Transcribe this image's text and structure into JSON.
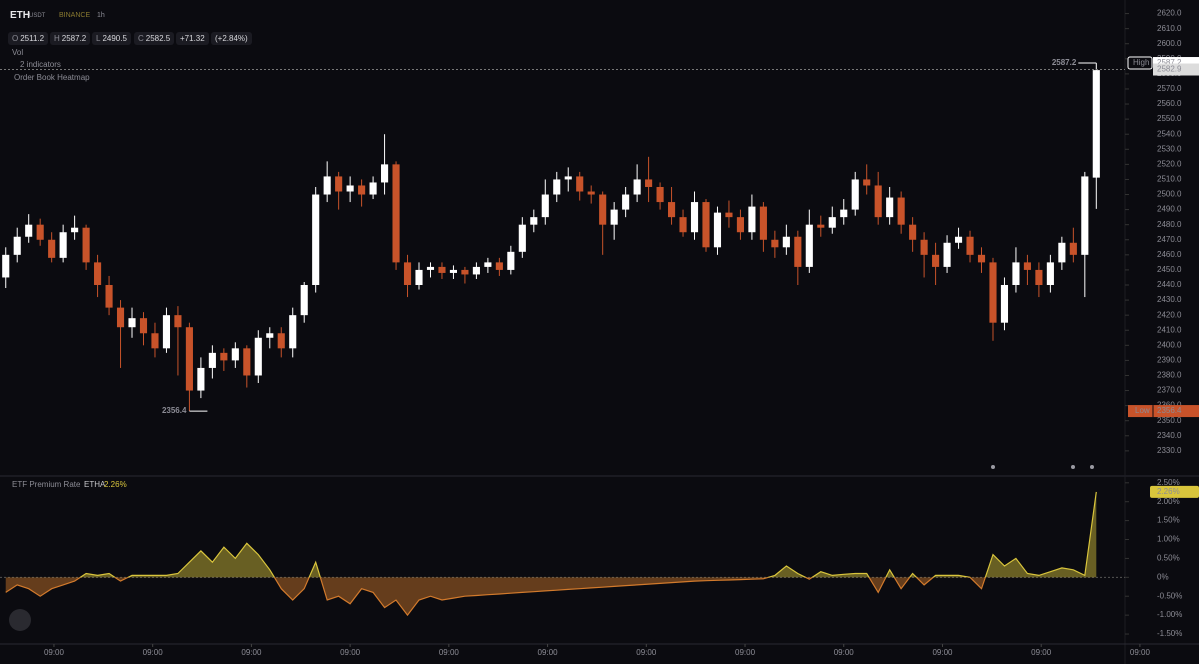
{
  "header": {
    "symbol": "ETH",
    "quote": "USDT",
    "exchange": "BINANCE",
    "interval": "1h",
    "o": "O",
    "h": "H",
    "l": "L",
    "c": "C",
    "change": "+71.32",
    "change_pct": "(+2.84%)",
    "vol": "Vol",
    "indicators": "2 indicators",
    "heatmap": "Order Book Heatmap"
  },
  "chart_data": [
    {
      "type": "candlestick",
      "up_color": "#ffffff",
      "down_color": "#c8532a",
      "high_label": "High",
      "low_label": "Low",
      "last_price": 2582.9,
      "xlim": [
        -0.5,
        97.5
      ],
      "xticks": [
        {
          "value": 4.2,
          "label": "09:00"
        },
        {
          "value": 12.8,
          "label": "09:00"
        },
        {
          "value": 21.4,
          "label": "09:00"
        },
        {
          "value": 30.0,
          "label": "09:00"
        },
        {
          "value": 38.6,
          "label": "09:00"
        },
        {
          "value": 47.2,
          "label": "09:00"
        },
        {
          "value": 55.8,
          "label": "09:00"
        },
        {
          "value": 64.4,
          "label": "09:00"
        },
        {
          "value": 73.0,
          "label": "09:00"
        },
        {
          "value": 81.6,
          "label": "09:00"
        },
        {
          "value": 90.2,
          "label": "09:00"
        },
        {
          "value": 98.8,
          "label": "09:00"
        }
      ],
      "ylim": [
        2314,
        2629
      ],
      "yticks": [
        {
          "value": 2620,
          "label": "2620.0"
        },
        {
          "value": 2610,
          "label": "2610.0"
        },
        {
          "value": 2600,
          "label": "2600.0"
        },
        {
          "value": 2590,
          "label": "2590.0"
        },
        {
          "value": 2580,
          "label": "2580.0"
        },
        {
          "value": 2570,
          "label": "2570.0"
        },
        {
          "value": 2560,
          "label": "2560.0"
        },
        {
          "value": 2550,
          "label": "2550.0"
        },
        {
          "value": 2540,
          "label": "2540.0"
        },
        {
          "value": 2530,
          "label": "2530.0"
        },
        {
          "value": 2520,
          "label": "2520.0"
        },
        {
          "value": 2510,
          "label": "2510.0"
        },
        {
          "value": 2500,
          "label": "2500.0"
        },
        {
          "value": 2490,
          "label": "2490.0"
        },
        {
          "value": 2480,
          "label": "2480.0"
        },
        {
          "value": 2470,
          "label": "2470.0"
        },
        {
          "value": 2460,
          "label": "2460.0"
        },
        {
          "value": 2450,
          "label": "2450.0"
        },
        {
          "value": 2440,
          "label": "2440.0"
        },
        {
          "value": 2430,
          "label": "2430.0"
        },
        {
          "value": 2420,
          "label": "2420.0"
        },
        {
          "value": 2410,
          "label": "2410.0"
        },
        {
          "value": 2400,
          "label": "2400.0"
        },
        {
          "value": 2390,
          "label": "2390.0"
        },
        {
          "value": 2380,
          "label": "2380.0"
        },
        {
          "value": 2370,
          "label": "2370.0"
        },
        {
          "value": 2360,
          "label": "2360.0"
        },
        {
          "value": 2350,
          "label": "2350.0"
        },
        {
          "value": 2340,
          "label": "2340.0"
        },
        {
          "value": 2330,
          "label": "2330.0"
        }
      ],
      "open": [
        2445,
        2460,
        2472,
        2480,
        2470,
        2458,
        2475,
        2478,
        2455,
        2440,
        2425,
        2412,
        2418,
        2408,
        2398,
        2420,
        2412,
        2370,
        2385,
        2395,
        2390,
        2398,
        2380,
        2405,
        2408,
        2398,
        2420,
        2440,
        2500,
        2512,
        2502,
        2506,
        2500,
        2508,
        2520,
        2455,
        2440,
        2450,
        2452,
        2448,
        2450,
        2447,
        2452,
        2455,
        2450,
        2462,
        2480,
        2485,
        2500,
        2510,
        2512,
        2502,
        2500,
        2480,
        2490,
        2500,
        2510,
        2505,
        2495,
        2485,
        2475,
        2495,
        2465,
        2488,
        2485,
        2475,
        2492,
        2470,
        2465,
        2472,
        2452,
        2480,
        2478,
        2485,
        2490,
        2510,
        2506,
        2485,
        2498,
        2480,
        2470,
        2460,
        2452,
        2468,
        2472,
        2460,
        2455,
        2415,
        2440,
        2455,
        2450,
        2440,
        2455,
        2468,
        2460,
        2511.2
      ],
      "high": [
        2465,
        2478,
        2487,
        2484,
        2475,
        2480,
        2486,
        2480,
        2460,
        2446,
        2430,
        2425,
        2422,
        2415,
        2425,
        2426,
        2415,
        2392,
        2400,
        2398,
        2402,
        2400,
        2410,
        2412,
        2412,
        2425,
        2442,
        2505,
        2522,
        2515,
        2512,
        2510,
        2512,
        2540,
        2522,
        2460,
        2455,
        2455,
        2455,
        2453,
        2452,
        2455,
        2458,
        2458,
        2466,
        2485,
        2490,
        2510,
        2515,
        2518,
        2515,
        2506,
        2502,
        2495,
        2505,
        2520,
        2525,
        2508,
        2505,
        2490,
        2502,
        2497,
        2492,
        2496,
        2490,
        2500,
        2495,
        2476,
        2480,
        2476,
        2490,
        2486,
        2492,
        2497,
        2515,
        2520,
        2515,
        2505,
        2502,
        2485,
        2475,
        2468,
        2473,
        2478,
        2476,
        2465,
        2458,
        2445,
        2465,
        2460,
        2455,
        2460,
        2472,
        2478,
        2515,
        2587.2
      ],
      "low": [
        2438,
        2455,
        2468,
        2466,
        2455,
        2455,
        2470,
        2450,
        2432,
        2420,
        2385,
        2405,
        2400,
        2392,
        2395,
        2380,
        2356.4,
        2365,
        2378,
        2383,
        2385,
        2372,
        2375,
        2398,
        2392,
        2392,
        2415,
        2435,
        2495,
        2490,
        2495,
        2492,
        2497,
        2500,
        2450,
        2432,
        2437,
        2445,
        2444,
        2444,
        2441,
        2444,
        2448,
        2446,
        2447,
        2458,
        2475,
        2480,
        2495,
        2502,
        2496,
        2494,
        2460,
        2470,
        2485,
        2495,
        2495,
        2490,
        2480,
        2472,
        2470,
        2462,
        2460,
        2478,
        2470,
        2470,
        2462,
        2458,
        2460,
        2440,
        2448,
        2472,
        2474,
        2480,
        2486,
        2500,
        2480,
        2480,
        2474,
        2462,
        2445,
        2440,
        2448,
        2464,
        2455,
        2448,
        2403,
        2410,
        2435,
        2440,
        2432,
        2435,
        2450,
        2455,
        2432,
        2490.5
      ],
      "close": [
        2460,
        2472,
        2480,
        2470,
        2458,
        2475,
        2478,
        2455,
        2440,
        2425,
        2412,
        2418,
        2408,
        2398,
        2420,
        2412,
        2370,
        2385,
        2395,
        2390,
        2398,
        2380,
        2405,
        2408,
        2398,
        2420,
        2440,
        2500,
        2512,
        2502,
        2506,
        2500,
        2508,
        2520,
        2455,
        2440,
        2450,
        2452,
        2448,
        2450,
        2447,
        2452,
        2455,
        2450,
        2462,
        2480,
        2485,
        2500,
        2510,
        2512,
        2502,
        2500,
        2480,
        2490,
        2500,
        2510,
        2505,
        2495,
        2485,
        2475,
        2495,
        2465,
        2488,
        2485,
        2475,
        2492,
        2470,
        2465,
        2472,
        2452,
        2480,
        2478,
        2485,
        2490,
        2510,
        2506,
        2485,
        2498,
        2480,
        2470,
        2460,
        2452,
        2468,
        2472,
        2460,
        2455,
        2415,
        2440,
        2455,
        2450,
        2440,
        2455,
        2468,
        2460,
        2512,
        2582.5
      ]
    },
    {
      "type": "area",
      "title": "ETF Premium Rate",
      "up_color": "#d9c53c",
      "down_color": "#d27a2c",
      "current": {
        "value": 2.26,
        "label": "2.26%"
      },
      "ylim": [
        -1.79,
        2.68
      ],
      "yticks": [
        {
          "value": 2.5,
          "label": "2.50%"
        },
        {
          "value": 2.0,
          "label": "2.00%"
        },
        {
          "value": 1.5,
          "label": "1.50%"
        },
        {
          "value": 1.0,
          "label": "1.00%"
        },
        {
          "value": 0.5,
          "label": "0.50%"
        },
        {
          "value": 0,
          "label": "0%"
        },
        {
          "value": -0.5,
          "label": "-0.50%"
        },
        {
          "value": -1.0,
          "label": "-1.00%"
        },
        {
          "value": -1.5,
          "label": "-1.50%"
        }
      ],
      "series": [
        {
          "name": "ETHA",
          "values": [
            -0.4,
            -0.2,
            -0.3,
            -0.5,
            -0.3,
            -0.2,
            -0.1,
            0.1,
            0.05,
            0.1,
            -0.1,
            0.05,
            0.05,
            0.05,
            0.05,
            0.1,
            0.4,
            0.7,
            0.4,
            0.8,
            0.5,
            0.9,
            0.6,
            0.2,
            -0.3,
            -0.6,
            -0.3,
            0.4,
            -0.6,
            -0.5,
            -0.7,
            -0.3,
            -0.4,
            -0.8,
            -0.6,
            -1.0,
            -0.6,
            -0.5,
            -0.6,
            -0.55,
            -0.5,
            -0.48,
            -0.46,
            -0.44,
            -0.42,
            -0.4,
            -0.38,
            -0.36,
            -0.34,
            -0.32,
            -0.3,
            -0.28,
            -0.26,
            -0.24,
            -0.22,
            -0.2,
            -0.18,
            -0.16,
            -0.14,
            -0.12,
            -0.1,
            -0.09,
            -0.08,
            -0.07,
            -0.06,
            -0.05,
            -0.04,
            0.05,
            0.3,
            0.1,
            -0.05,
            0.15,
            0.05,
            0.08,
            0.1,
            0.1,
            -0.4,
            0.2,
            -0.3,
            0.1,
            -0.2,
            0.05,
            0.05,
            0.05,
            0,
            -0.3,
            0.6,
            0.3,
            0.5,
            0.1,
            0.05,
            0.15,
            0.25,
            0.2,
            0.05,
            2.26
          ]
        }
      ]
    }
  ]
}
